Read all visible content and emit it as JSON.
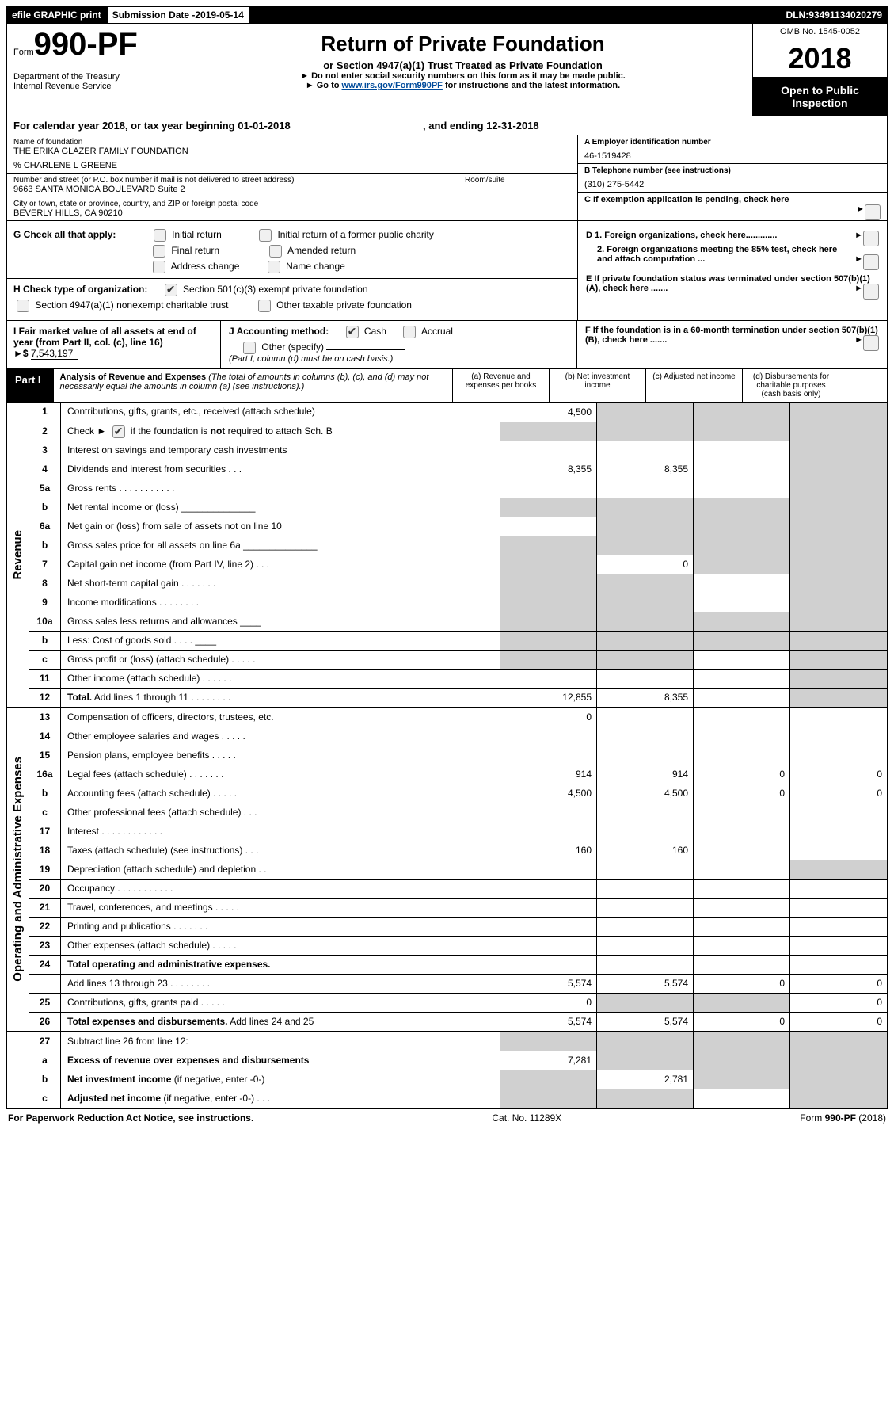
{
  "topbar": {
    "efile": "efile GRAPHIC print",
    "subdate_lbl": "Submission Date - ",
    "subdate": "2019-05-14",
    "dln_lbl": "DLN: ",
    "dln": "93491134020279"
  },
  "header": {
    "form_prefix": "Form",
    "form_no": "990-PF",
    "dept1": "Department of the Treasury",
    "dept2": "Internal Revenue Service",
    "title": "Return of Private Foundation",
    "subtitle": "or Section 4947(a)(1) Trust Treated as Private Foundation",
    "warn": "Do not enter social security numbers on this form as it may be made public.",
    "goto_pre": "Go to ",
    "goto_link": "www.irs.gov/Form990PF",
    "goto_post": " for instructions and the latest information.",
    "omb": "OMB No. 1545-0052",
    "year": "2018",
    "open": "Open to Public Inspection"
  },
  "calyear": {
    "pre": "For calendar year 2018, or tax year beginning ",
    "start": "01-01-2018",
    "mid": ", and ending ",
    "end": "12-31-2018"
  },
  "entity": {
    "name_lbl": "Name of foundation",
    "name": "THE ERIKA GLAZER FAMILY FOUNDATION",
    "care": "% CHARLENE L GREENE",
    "addr_lbl": "Number and street (or P.O. box number if mail is not delivered to street address)",
    "addr": "9663 SANTA MONICA BOULEVARD Suite 2",
    "room_lbl": "Room/suite",
    "city_lbl": "City or town, state or province, country, and ZIP or foreign postal code",
    "city": "BEVERLY HILLS, CA  90210",
    "a_lbl": "A Employer identification number",
    "a_val": "46-1519428",
    "b_lbl": "B Telephone number (see instructions)",
    "b_val": "(310) 275-5442",
    "c_lbl": "C  If exemption application is pending, check here"
  },
  "g": {
    "lbl": "G Check all that apply:",
    "opts": [
      "Initial return",
      "Initial return of a former public charity",
      "Final return",
      "Amended return",
      "Address change",
      "Name change"
    ]
  },
  "h": {
    "lbl": "H Check type of organization:",
    "o1": "Section 501(c)(3) exempt private foundation",
    "o2": "Section 4947(a)(1) nonexempt charitable trust",
    "o3": "Other taxable private foundation"
  },
  "right_d": {
    "d1": "D 1. Foreign organizations, check here.............",
    "d2": "2. Foreign organizations meeting the 85% test, check here and attach computation ...",
    "e": "E  If private foundation status was terminated under section 507(b)(1)(A), check here .......",
    "f": "F  If the foundation is in a 60-month termination under section 507(b)(1)(B), check here ......."
  },
  "i": {
    "lbl": "I Fair market value of all assets at end of year (from Part II, col. (c), line 16)",
    "val": "7,543,197",
    "j_lbl": "J Accounting method:",
    "j_cash": "Cash",
    "j_acc": "Accrual",
    "j_other": "Other (specify)",
    "j_note": "(Part I, column (d) must be on cash basis.)"
  },
  "part1": {
    "label": "Part I",
    "title": "Analysis of Revenue and Expenses",
    "note": "(The total of amounts in columns (b), (c), and (d) may not necessarily equal the amounts in column (a) (see instructions).)",
    "cols": {
      "a": "(a)    Revenue and expenses per books",
      "b": "(b)    Net investment income",
      "c": "(c)    Adjusted net income",
      "d": "(d)    Disbursements for charitable purposes (cash basis only)"
    }
  },
  "sides": {
    "rev": "Revenue",
    "exp": "Operating and Administrative Expenses"
  },
  "rows_rev": [
    {
      "n": "1",
      "d": "Contributions, gifts, grants, etc., received (attach schedule)",
      "a": "4,500",
      "b": "shade",
      "c": "shade",
      "dd": "shade"
    },
    {
      "n": "2",
      "d": "Check ► [cb-checked] if the foundation is <b>not</b> required to attach Sch. B",
      "a": "shade",
      "b": "shade",
      "c": "shade",
      "dd": "shade"
    },
    {
      "n": "3",
      "d": "Interest on savings and temporary cash investments",
      "a": "",
      "b": "",
      "c": "",
      "dd": "shade"
    },
    {
      "n": "4",
      "d": "Dividends and interest from securities   .  .  .",
      "a": "8,355",
      "b": "8,355",
      "c": "",
      "dd": "shade"
    },
    {
      "n": "5a",
      "d": "Gross rents   .  .  .  .  .  .  .  .  .  .  .",
      "a": "",
      "b": "",
      "c": "",
      "dd": "shade"
    },
    {
      "n": "b",
      "d": "Net rental income or (loss) ______________",
      "a": "shade",
      "b": "shade",
      "c": "shade",
      "dd": "shade"
    },
    {
      "n": "6a",
      "d": "Net gain or (loss) from sale of assets not on line 10",
      "a": "",
      "b": "shade",
      "c": "shade",
      "dd": "shade"
    },
    {
      "n": "b",
      "d": "Gross sales price for all assets on line 6a ______________",
      "a": "shade",
      "b": "shade",
      "c": "shade",
      "dd": "shade"
    },
    {
      "n": "7",
      "d": "Capital gain net income (from Part IV, line 2)   .  .  .",
      "a": "shade",
      "b": "0",
      "c": "shade",
      "dd": "shade"
    },
    {
      "n": "8",
      "d": "Net short-term capital gain   .  .  .  .  .  .  .",
      "a": "shade",
      "b": "shade",
      "c": "",
      "dd": "shade"
    },
    {
      "n": "9",
      "d": "Income modifications   .  .  .  .  .  .  .  .",
      "a": "shade",
      "b": "shade",
      "c": "",
      "dd": "shade"
    },
    {
      "n": "10a",
      "d": "Gross sales less returns and allowances ____",
      "a": "shade",
      "b": "shade",
      "c": "shade",
      "dd": "shade"
    },
    {
      "n": "b",
      "d": "Less: Cost of goods sold   .  .  .  . ____",
      "a": "shade",
      "b": "shade",
      "c": "shade",
      "dd": "shade"
    },
    {
      "n": "c",
      "d": "Gross profit or (loss) (attach schedule)   .  .  .  .  .",
      "a": "shade",
      "b": "shade",
      "c": "",
      "dd": "shade"
    },
    {
      "n": "11",
      "d": "Other income (attach schedule)   .  .  .  .  .  .",
      "a": "",
      "b": "",
      "c": "",
      "dd": "shade"
    },
    {
      "n": "12",
      "d": "<b>Total.</b> Add lines 1 through 11   .  .  .  .  .  .  .  .",
      "a": "12,855",
      "b": "8,355",
      "c": "",
      "dd": "shade"
    }
  ],
  "rows_exp": [
    {
      "n": "13",
      "d": "Compensation of officers, directors, trustees, etc.",
      "a": "0",
      "b": "",
      "c": "",
      "dd": ""
    },
    {
      "n": "14",
      "d": "Other employee salaries and wages   .  .  .  .  .",
      "a": "",
      "b": "",
      "c": "",
      "dd": ""
    },
    {
      "n": "15",
      "d": "Pension plans, employee benefits   .  .  .  .  .",
      "a": "",
      "b": "",
      "c": "",
      "dd": ""
    },
    {
      "n": "16a",
      "d": "Legal fees (attach schedule)   .  .  .  .  .  .  .",
      "a": "914",
      "b": "914",
      "c": "0",
      "dd": "0"
    },
    {
      "n": "b",
      "d": "Accounting fees (attach schedule)   .  .  .  .  .",
      "a": "4,500",
      "b": "4,500",
      "c": "0",
      "dd": "0"
    },
    {
      "n": "c",
      "d": "Other professional fees (attach schedule)   .  .  .",
      "a": "",
      "b": "",
      "c": "",
      "dd": ""
    },
    {
      "n": "17",
      "d": "Interest   .  .  .  .  .  .  .  .  .  .  .  .",
      "a": "",
      "b": "",
      "c": "",
      "dd": ""
    },
    {
      "n": "18",
      "d": "Taxes (attach schedule) (see instructions)   .  .  .",
      "a": "160",
      "b": "160",
      "c": "",
      "dd": ""
    },
    {
      "n": "19",
      "d": "Depreciation (attach schedule) and depletion   .  .",
      "a": "",
      "b": "",
      "c": "",
      "dd": "shade"
    },
    {
      "n": "20",
      "d": "Occupancy   .  .  .  .  .  .  .  .  .  .  .",
      "a": "",
      "b": "",
      "c": "",
      "dd": ""
    },
    {
      "n": "21",
      "d": "Travel, conferences, and meetings   .  .  .  .  .",
      "a": "",
      "b": "",
      "c": "",
      "dd": ""
    },
    {
      "n": "22",
      "d": "Printing and publications   .  .  .  .  .  .  .",
      "a": "",
      "b": "",
      "c": "",
      "dd": ""
    },
    {
      "n": "23",
      "d": "Other expenses (attach schedule)   .  .  .  .  .",
      "a": "",
      "b": "",
      "c": "",
      "dd": ""
    },
    {
      "n": "24",
      "d": "<b>Total operating and administrative expenses.</b>",
      "a": "",
      "b": "",
      "c": "",
      "dd": ""
    },
    {
      "n": "",
      "d": "Add lines 13 through 23   .  .  .  .  .  .  .  .",
      "a": "5,574",
      "b": "5,574",
      "c": "0",
      "dd": "0"
    },
    {
      "n": "25",
      "d": "Contributions, gifts, grants paid   .  .  .  .  .",
      "a": "0",
      "b": "shade",
      "c": "shade",
      "dd": "0"
    },
    {
      "n": "26",
      "d": "<b>Total expenses and disbursements.</b> Add lines 24 and 25",
      "a": "5,574",
      "b": "5,574",
      "c": "0",
      "dd": "0"
    }
  ],
  "rows_bot": [
    {
      "n": "27",
      "d": "Subtract line 26 from line 12:",
      "a": "shade",
      "b": "shade",
      "c": "shade",
      "dd": "shade"
    },
    {
      "n": "a",
      "d": "<b>Excess of revenue over expenses and disbursements</b>",
      "a": "7,281",
      "b": "shade",
      "c": "shade",
      "dd": "shade"
    },
    {
      "n": "b",
      "d": "<b>Net investment income</b> (if negative, enter -0-)",
      "a": "shade",
      "b": "2,781",
      "c": "shade",
      "dd": "shade"
    },
    {
      "n": "c",
      "d": "<b>Adjusted net income</b> (if negative, enter -0-)   .  .  .",
      "a": "shade",
      "b": "shade",
      "c": "",
      "dd": "shade"
    }
  ],
  "footer": {
    "left": "For Paperwork Reduction Act Notice, see instructions.",
    "mid": "Cat. No. 11289X",
    "right": "Form 990-PF (2018)"
  }
}
